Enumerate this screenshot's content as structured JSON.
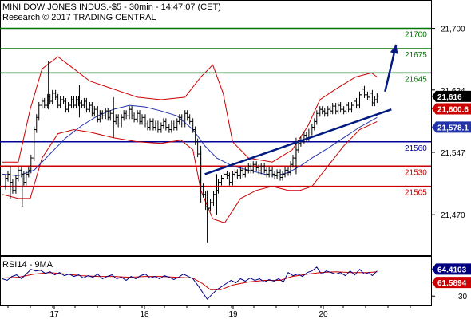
{
  "header": {
    "title": "MINI DOW JONES INDUS.-$5 - 30min - 14:47:07 (CET)",
    "credit": "Research © 2017 TRADING CENTRAL"
  },
  "colors": {
    "candle": "#000000",
    "bollinger": "#cc0000",
    "moving_average": "#2233aa",
    "support": "#000099",
    "resistance_green": "#007700",
    "resistance_red": "#cc0000",
    "trend": "#001a80",
    "arrow": "#001a80",
    "rsi": "#000080",
    "rsi_ma": "#cc0000",
    "price_tag": "#000000",
    "bb_tag": "#cc0000",
    "ma_tag": "#2233aa"
  },
  "chart_data": {
    "type": "candlestick",
    "x_dates": [
      "17",
      "18",
      "19",
      "20"
    ],
    "y_ticks": [
      21470,
      21547,
      21624,
      21700
    ],
    "ylim": [
      21420,
      21735
    ],
    "levels": [
      {
        "value": 21700,
        "label": "21700",
        "color": "green"
      },
      {
        "value": 21675,
        "label": "21675",
        "color": "green"
      },
      {
        "value": 21645,
        "label": "21645",
        "color": "green"
      },
      {
        "value": 21560,
        "label": "21560",
        "color": "blue"
      },
      {
        "value": 21530,
        "label": "21530",
        "color": "red"
      },
      {
        "value": 21505,
        "label": "21505",
        "color": "red"
      }
    ],
    "price_tags": [
      {
        "label": "21,616",
        "value": 21616,
        "kind": "price"
      },
      {
        "label": "21,600.6",
        "value": 21600.6,
        "kind": "bollinger"
      },
      {
        "label": "21,578.1",
        "value": 21578.1,
        "kind": "moving_average"
      }
    ],
    "price_path": [
      [
        0,
        21505
      ],
      [
        4,
        21515
      ],
      [
        7,
        21520
      ],
      [
        10,
        21510
      ],
      [
        13,
        21500
      ],
      [
        17,
        21515
      ],
      [
        20,
        21525
      ],
      [
        24,
        21520
      ],
      [
        27,
        21510
      ],
      [
        30,
        21520
      ],
      [
        33,
        21525
      ],
      [
        36,
        21540
      ],
      [
        40,
        21575
      ],
      [
        43,
        21590
      ],
      [
        46,
        21605
      ],
      [
        50,
        21610
      ],
      [
        53,
        21605
      ],
      [
        57,
        21615
      ],
      [
        60,
        21610
      ],
      [
        63,
        21620
      ],
      [
        67,
        21615
      ],
      [
        70,
        21605
      ],
      [
        73,
        21612
      ],
      [
        77,
        21610
      ],
      [
        80,
        21600
      ],
      [
        83,
        21605
      ],
      [
        87,
        21612
      ],
      [
        90,
        21605
      ],
      [
        93,
        21612
      ],
      [
        96,
        21608
      ],
      [
        100,
        21605
      ],
      [
        103,
        21610
      ],
      [
        106,
        21600
      ],
      [
        110,
        21605
      ],
      [
        113,
        21595
      ],
      [
        116,
        21600
      ],
      [
        120,
        21588
      ],
      [
        123,
        21595
      ],
      [
        126,
        21592
      ],
      [
        130,
        21598
      ],
      [
        133,
        21590
      ],
      [
        136,
        21595
      ],
      [
        140,
        21585
      ],
      [
        143,
        21590
      ],
      [
        146,
        21582
      ],
      [
        150,
        21590
      ],
      [
        153,
        21595
      ],
      [
        156,
        21592
      ],
      [
        160,
        21600
      ],
      [
        163,
        21592
      ],
      [
        166,
        21588
      ],
      [
        170,
        21595
      ],
      [
        173,
        21585
      ],
      [
        176,
        21590
      ],
      [
        180,
        21582
      ],
      [
        183,
        21578
      ],
      [
        186,
        21585
      ],
      [
        190,
        21578
      ],
      [
        193,
        21582
      ],
      [
        196,
        21575
      ],
      [
        200,
        21580
      ],
      [
        203,
        21585
      ],
      [
        206,
        21578
      ],
      [
        210,
        21575
      ],
      [
        213,
        21582
      ],
      [
        216,
        21578
      ],
      [
        220,
        21585
      ],
      [
        223,
        21590
      ],
      [
        226,
        21582
      ],
      [
        230,
        21595
      ],
      [
        233,
        21590
      ],
      [
        236,
        21585
      ],
      [
        240,
        21575
      ],
      [
        243,
        21560
      ],
      [
        246,
        21545
      ],
      [
        250,
        21505
      ],
      [
        253,
        21495
      ],
      [
        256,
        21480
      ],
      [
        259,
        21478
      ],
      [
        262,
        21485
      ],
      [
        266,
        21495
      ],
      [
        269,
        21500
      ],
      [
        272,
        21510
      ],
      [
        276,
        21515
      ],
      [
        279,
        21520
      ],
      [
        283,
        21518
      ],
      [
        286,
        21510
      ],
      [
        290,
        21520
      ],
      [
        293,
        21522
      ],
      [
        296,
        21518
      ],
      [
        300,
        21525
      ],
      [
        303,
        21520
      ],
      [
        306,
        21525
      ],
      [
        310,
        21530
      ],
      [
        313,
        21525
      ],
      [
        316,
        21532
      ],
      [
        320,
        21528
      ],
      [
        323,
        21524
      ],
      [
        326,
        21530
      ],
      [
        330,
        21525
      ],
      [
        333,
        21520
      ],
      [
        336,
        21525
      ],
      [
        340,
        21520
      ],
      [
        343,
        21518
      ],
      [
        346,
        21522
      ],
      [
        350,
        21516
      ],
      [
        353,
        21520
      ],
      [
        356,
        21525
      ],
      [
        360,
        21522
      ],
      [
        363,
        21532
      ],
      [
        366,
        21540
      ],
      [
        370,
        21550
      ],
      [
        373,
        21558
      ],
      [
        376,
        21562
      ],
      [
        380,
        21568
      ],
      [
        383,
        21565
      ],
      [
        386,
        21572
      ],
      [
        390,
        21578
      ],
      [
        393,
        21585
      ],
      [
        396,
        21595
      ],
      [
        400,
        21600
      ],
      [
        403,
        21598
      ],
      [
        406,
        21595
      ],
      [
        410,
        21600
      ],
      [
        413,
        21598
      ],
      [
        416,
        21604
      ],
      [
        420,
        21598
      ],
      [
        423,
        21605
      ],
      [
        426,
        21600
      ],
      [
        430,
        21598
      ],
      [
        433,
        21605
      ],
      [
        436,
        21600
      ],
      [
        440,
        21605
      ],
      [
        443,
        21610
      ],
      [
        446,
        21605
      ],
      [
        450,
        21618
      ],
      [
        453,
        21625
      ],
      [
        456,
        21618
      ],
      [
        460,
        21615
      ],
      [
        463,
        21620
      ],
      [
        466,
        21608
      ],
      [
        469,
        21612
      ],
      [
        472,
        21616
      ]
    ],
    "candles": [
      {
        "x": 10,
        "high": 21530,
        "low": 21490
      },
      {
        "x": 25,
        "high": 21520,
        "low": 21480
      },
      {
        "x": 58,
        "high": 21660,
        "low": 21600
      },
      {
        "x": 97,
        "high": 21630,
        "low": 21590
      },
      {
        "x": 140,
        "high": 21615,
        "low": 21565
      },
      {
        "x": 250,
        "high": 21555,
        "low": 21485
      },
      {
        "x": 258,
        "high": 21500,
        "low": 21435
      },
      {
        "x": 270,
        "high": 21520,
        "low": 21470
      },
      {
        "x": 370,
        "high": 21565,
        "low": 21520
      },
      {
        "x": 448,
        "high": 21635,
        "low": 21600
      }
    ],
    "bb_upper": [
      [
        0,
        21535
      ],
      [
        20,
        21535
      ],
      [
        35,
        21600
      ],
      [
        50,
        21650
      ],
      [
        70,
        21665
      ],
      [
        90,
        21650
      ],
      [
        110,
        21635
      ],
      [
        140,
        21625
      ],
      [
        170,
        21615
      ],
      [
        200,
        21612
      ],
      [
        230,
        21615
      ],
      [
        250,
        21640
      ],
      [
        265,
        21655
      ],
      [
        278,
        21620
      ],
      [
        290,
        21560
      ],
      [
        310,
        21540
      ],
      [
        340,
        21535
      ],
      [
        365,
        21550
      ],
      [
        385,
        21580
      ],
      [
        400,
        21612
      ],
      [
        420,
        21625
      ],
      [
        445,
        21640
      ],
      [
        465,
        21645
      ],
      [
        472,
        21640
      ]
    ],
    "bb_lower": [
      [
        0,
        21495
      ],
      [
        20,
        21490
      ],
      [
        35,
        21490
      ],
      [
        50,
        21540
      ],
      [
        70,
        21570
      ],
      [
        90,
        21575
      ],
      [
        110,
        21572
      ],
      [
        140,
        21565
      ],
      [
        170,
        21560
      ],
      [
        200,
        21558
      ],
      [
        225,
        21562
      ],
      [
        240,
        21550
      ],
      [
        250,
        21500
      ],
      [
        265,
        21465
      ],
      [
        280,
        21460
      ],
      [
        300,
        21490
      ],
      [
        320,
        21500
      ],
      [
        340,
        21505
      ],
      [
        360,
        21500
      ],
      [
        375,
        21500
      ],
      [
        390,
        21505
      ],
      [
        410,
        21530
      ],
      [
        430,
        21555
      ],
      [
        450,
        21575
      ],
      [
        472,
        21585
      ]
    ],
    "ma": [
      [
        0,
        21520
      ],
      [
        20,
        21518
      ],
      [
        40,
        21525
      ],
      [
        60,
        21545
      ],
      [
        80,
        21565
      ],
      [
        100,
        21580
      ],
      [
        120,
        21592
      ],
      [
        140,
        21600
      ],
      [
        160,
        21605
      ],
      [
        180,
        21603
      ],
      [
        200,
        21598
      ],
      [
        220,
        21592
      ],
      [
        240,
        21575
      ],
      [
        255,
        21555
      ],
      [
        270,
        21540
      ],
      [
        290,
        21530
      ],
      [
        310,
        21525
      ],
      [
        330,
        21520
      ],
      [
        345,
        21518
      ],
      [
        360,
        21522
      ],
      [
        375,
        21530
      ],
      [
        390,
        21540
      ],
      [
        410,
        21552
      ],
      [
        430,
        21565
      ],
      [
        450,
        21578
      ],
      [
        472,
        21590
      ]
    ],
    "trend_line": [
      [
        255,
        21520
      ],
      [
        490,
        21600
      ]
    ],
    "arrow": [
      [
        482,
        21622
      ],
      [
        496,
        21680
      ]
    ],
    "rsi": {
      "label": "RSI14 - 9MA",
      "ylim": [
        18,
        80
      ],
      "ticks": [
        30
      ],
      "value_tags": [
        {
          "label": "64.4103",
          "value": 64.4103,
          "kind": "rsi"
        },
        {
          "label": "61.5894",
          "value": 61.5894,
          "kind": "rsi_ma"
        }
      ],
      "rsi_path": [
        [
          0,
          52
        ],
        [
          6,
          50
        ],
        [
          12,
          55
        ],
        [
          18,
          57
        ],
        [
          24,
          52
        ],
        [
          30,
          58
        ],
        [
          36,
          64
        ],
        [
          42,
          62
        ],
        [
          48,
          63
        ],
        [
          54,
          59
        ],
        [
          60,
          61
        ],
        [
          66,
          57
        ],
        [
          72,
          60
        ],
        [
          78,
          56
        ],
        [
          84,
          58
        ],
        [
          90,
          55
        ],
        [
          96,
          57
        ],
        [
          102,
          53
        ],
        [
          108,
          56
        ],
        [
          114,
          54
        ],
        [
          120,
          58
        ],
        [
          126,
          52
        ],
        [
          132,
          55
        ],
        [
          138,
          57
        ],
        [
          144,
          52
        ],
        [
          150,
          54
        ],
        [
          156,
          50
        ],
        [
          162,
          55
        ],
        [
          168,
          52
        ],
        [
          174,
          56
        ],
        [
          180,
          58
        ],
        [
          186,
          53
        ],
        [
          192,
          55
        ],
        [
          198,
          52
        ],
        [
          204,
          56
        ],
        [
          210,
          54
        ],
        [
          216,
          51
        ],
        [
          222,
          54
        ],
        [
          228,
          58
        ],
        [
          234,
          55
        ],
        [
          240,
          52
        ],
        [
          246,
          44
        ],
        [
          252,
          35
        ],
        [
          258,
          26
        ],
        [
          264,
          32
        ],
        [
          270,
          38
        ],
        [
          276,
          42
        ],
        [
          282,
          46
        ],
        [
          288,
          50
        ],
        [
          294,
          47
        ],
        [
          300,
          52
        ],
        [
          306,
          49
        ],
        [
          312,
          53
        ],
        [
          318,
          50
        ],
        [
          324,
          52
        ],
        [
          330,
          48
        ],
        [
          336,
          51
        ],
        [
          342,
          49
        ],
        [
          348,
          52
        ],
        [
          354,
          48
        ],
        [
          360,
          60
        ],
        [
          366,
          56
        ],
        [
          372,
          58
        ],
        [
          378,
          55
        ],
        [
          384,
          60
        ],
        [
          390,
          62
        ],
        [
          396,
          67
        ],
        [
          402,
          58
        ],
        [
          408,
          62
        ],
        [
          414,
          60
        ],
        [
          420,
          58
        ],
        [
          426,
          60
        ],
        [
          432,
          56
        ],
        [
          438,
          62
        ],
        [
          444,
          57
        ],
        [
          450,
          64
        ],
        [
          456,
          58
        ],
        [
          462,
          60
        ],
        [
          466,
          56
        ],
        [
          472,
          62
        ]
      ],
      "rsi_ma_path": [
        [
          0,
          53
        ],
        [
          20,
          54
        ],
        [
          40,
          58
        ],
        [
          60,
          60
        ],
        [
          80,
          58
        ],
        [
          100,
          56
        ],
        [
          120,
          55
        ],
        [
          140,
          55
        ],
        [
          160,
          54
        ],
        [
          180,
          55
        ],
        [
          200,
          55
        ],
        [
          220,
          54
        ],
        [
          240,
          53
        ],
        [
          252,
          46
        ],
        [
          262,
          38
        ],
        [
          275,
          38
        ],
        [
          290,
          44
        ],
        [
          310,
          48
        ],
        [
          330,
          50
        ],
        [
          350,
          50
        ],
        [
          365,
          55
        ],
        [
          385,
          58
        ],
        [
          400,
          60
        ],
        [
          420,
          61
        ],
        [
          440,
          60
        ],
        [
          460,
          60
        ],
        [
          472,
          61
        ]
      ]
    }
  }
}
